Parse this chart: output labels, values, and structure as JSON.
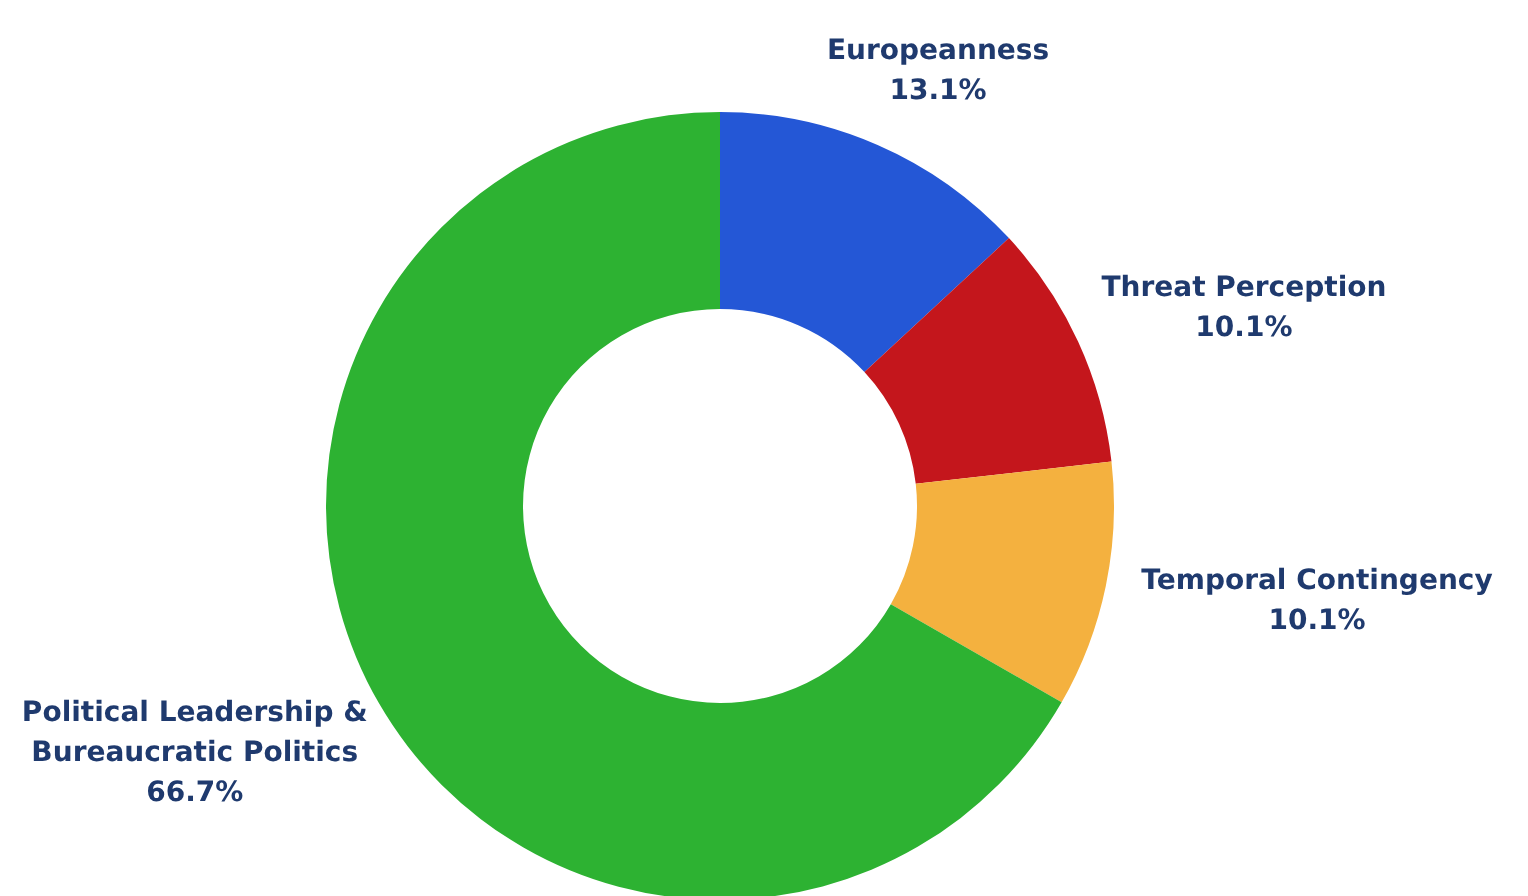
{
  "chart_data": {
    "type": "donut",
    "categories": [
      "Europeanness",
      "Threat Perception",
      "Temporal Contingency",
      "Political Leadership & Bureaucratic Politics"
    ],
    "values": [
      13.1,
      10.1,
      10.1,
      66.7
    ],
    "value_labels": [
      "13.1%",
      "10.1%",
      "10.1%",
      "66.7%"
    ],
    "colors": [
      "#2457d6",
      "#c4161c",
      "#f4b13f",
      "#2db232"
    ],
    "legend": false
  }
}
